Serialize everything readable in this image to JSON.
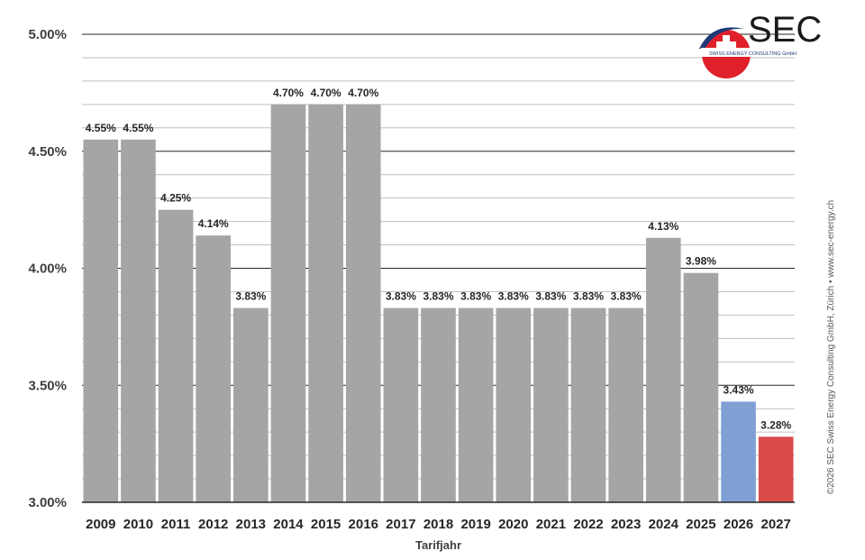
{
  "chart_data": {
    "type": "bar",
    "categories": [
      "2009",
      "2010",
      "2011",
      "2012",
      "2013",
      "2014",
      "2015",
      "2016",
      "2017",
      "2018",
      "2019",
      "2020",
      "2021",
      "2022",
      "2023",
      "2024",
      "2025",
      "2026",
      "2027"
    ],
    "values": [
      4.55,
      4.55,
      4.25,
      4.14,
      3.83,
      4.7,
      4.7,
      4.7,
      3.83,
      3.83,
      3.83,
      3.83,
      3.83,
      3.83,
      3.83,
      4.13,
      3.98,
      3.43,
      3.28
    ],
    "data_labels": [
      "4.55%",
      "4.55%",
      "4.25%",
      "4.14%",
      "3.83%",
      "4.70%",
      "4.70%",
      "4.70%",
      "3.83%",
      "3.83%",
      "3.83%",
      "3.83%",
      "3.83%",
      "3.83%",
      "3.83%",
      "4.13%",
      "3.98%",
      "3.43%",
      "3.28%"
    ],
    "bar_colors": [
      "#a5a5a5",
      "#a5a5a5",
      "#a5a5a5",
      "#a5a5a5",
      "#a5a5a5",
      "#a5a5a5",
      "#a5a5a5",
      "#a5a5a5",
      "#a5a5a5",
      "#a5a5a5",
      "#a5a5a5",
      "#a5a5a5",
      "#a5a5a5",
      "#a5a5a5",
      "#a5a5a5",
      "#a5a5a5",
      "#a5a5a5",
      "#7f9fd5",
      "#d94a4a"
    ],
    "xlabel": "Tarifjahr",
    "ylim": [
      3.0,
      5.0
    ],
    "yticks": [
      3.0,
      3.5,
      4.0,
      4.5,
      5.0
    ],
    "ytick_labels": [
      "3.00%",
      "3.50%",
      "4.00%",
      "4.50%",
      "5.00%"
    ],
    "minor_step": 0.1,
    "grid": true
  },
  "logo": {
    "text": "SEC",
    "subtext": "SWISS ENERGY CONSULTING GmbH"
  },
  "copyright": "©2026 SEC Swiss Energy Consulting GmbH, Zürich • www.sec-energy.ch",
  "colors": {
    "gray_bar": "#a5a5a5",
    "blue_bar": "#7f9fd5",
    "red_bar": "#d94a4a",
    "logo_red": "#e0202a",
    "logo_blue": "#1f3a7a"
  }
}
